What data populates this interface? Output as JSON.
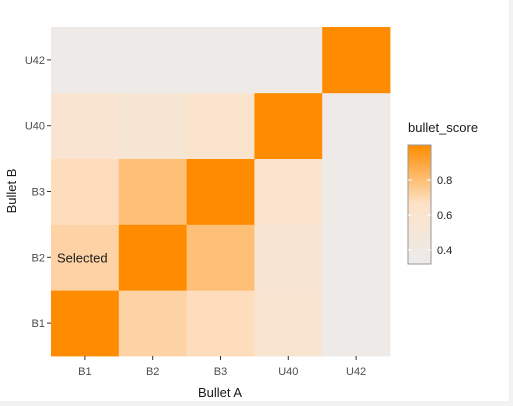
{
  "chart_data": {
    "type": "heatmap",
    "x_categories": [
      "B1",
      "B2",
      "B3",
      "U40",
      "U42"
    ],
    "y_categories": [
      "B1",
      "B2",
      "B3",
      "U40",
      "U42"
    ],
    "xlabel": "Bullet A",
    "ylabel": "Bullet B",
    "values": [
      [
        1.0,
        0.72,
        0.68,
        0.57,
        0.35
      ],
      [
        0.72,
        1.0,
        0.8,
        0.54,
        0.35
      ],
      [
        0.68,
        0.8,
        1.0,
        0.6,
        0.35
      ],
      [
        0.57,
        0.54,
        0.6,
        1.0,
        0.35
      ],
      [
        0.35,
        0.35,
        0.35,
        0.35,
        1.0
      ]
    ],
    "legend": {
      "title": "bullet_score",
      "ticks": [
        0.4,
        0.6,
        0.8
      ],
      "tick_labels": [
        "0.4",
        "0.6",
        "0.8"
      ],
      "range": [
        0.32,
        1.0
      ],
      "position": "right"
    },
    "colors": {
      "low": "#ebebeb",
      "mid": "#fde2c8",
      "high": "#ff8c00"
    },
    "panel_background": "#ebebeb",
    "annotation": {
      "text": "Selected",
      "x": "B1",
      "y": "B2"
    }
  }
}
